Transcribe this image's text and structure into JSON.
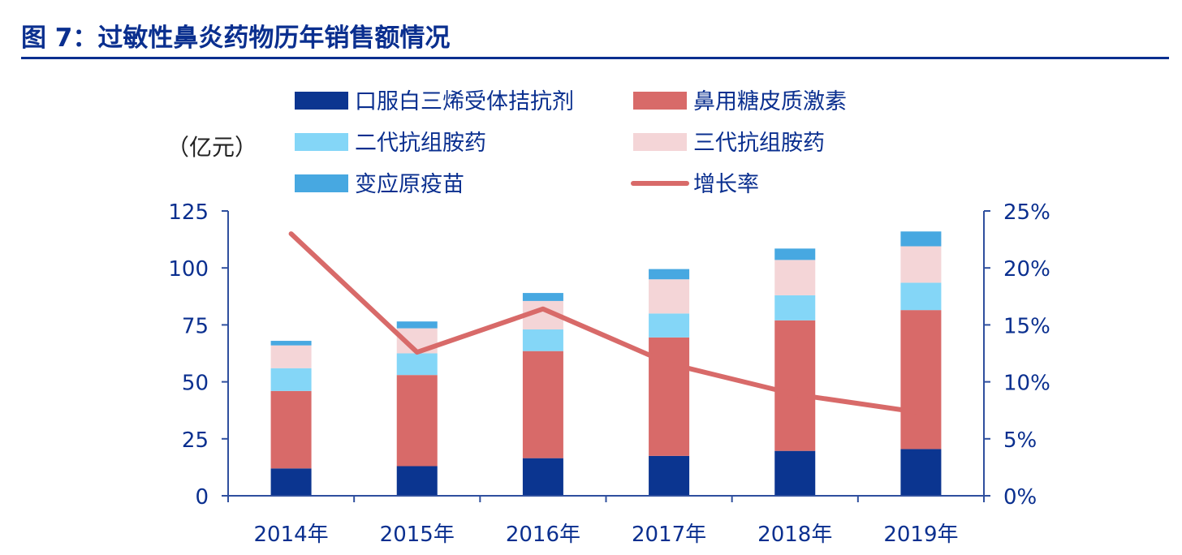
{
  "title": "图 7：过敏性鼻炎药物历年销售额情况",
  "unit_label": "（亿元）",
  "chart_data": {
    "type": "bar",
    "stacked": true,
    "categories": [
      "2014年",
      "2015年",
      "2016年",
      "2017年",
      "2018年",
      "2019年"
    ],
    "series": [
      {
        "name": "口服白三烯受体拮抗剂",
        "color": "#0b3590",
        "values": [
          12,
          13,
          16.5,
          17.5,
          19.7,
          20.5
        ]
      },
      {
        "name": "鼻用糖皮质激素",
        "color": "#d86a69",
        "values": [
          34,
          40,
          47,
          52,
          57.3,
          61
        ]
      },
      {
        "name": "二代抗组胺药",
        "color": "#84d6f7",
        "values": [
          10,
          9.5,
          9.5,
          10.5,
          11,
          12
        ]
      },
      {
        "name": "三代抗组胺药",
        "color": "#f4d5d7",
        "values": [
          10,
          11,
          12.5,
          15,
          15.5,
          16
        ]
      },
      {
        "name": "变应原疫苗",
        "color": "#47a8e1",
        "values": [
          2,
          3,
          3.5,
          4.5,
          5,
          6.5
        ]
      }
    ],
    "line_series": {
      "name": "增长率",
      "color": "#d86a69",
      "axis": "right",
      "values": [
        23,
        12.6,
        16.4,
        11.6,
        8.9,
        7.3
      ]
    },
    "y_left": {
      "ylim": [
        0,
        125
      ],
      "ticks": [
        "0",
        "25",
        "50",
        "75",
        "100",
        "125"
      ]
    },
    "y_right": {
      "ylim": [
        0,
        25
      ],
      "ticks": [
        "0%",
        "5%",
        "10%",
        "15%",
        "20%",
        "25%"
      ]
    },
    "legend_position": "top"
  },
  "colors": {
    "axis": "#2f4f9e",
    "text": "#0a2f8f",
    "title": "#0a2f8f"
  }
}
